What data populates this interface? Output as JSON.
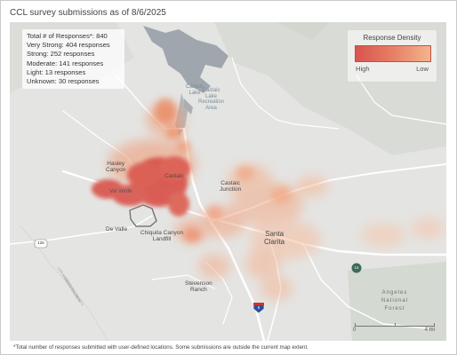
{
  "title": "CCL survey submissions as of 8/6/2025",
  "stats": {
    "total": "Total # of Responses*: 840",
    "rows": [
      "Very Strong: 404 responses",
      "Strong: 252 responses",
      "Moderate: 141 responses",
      "Light: 13 responses",
      "Unknown: 30 responses"
    ]
  },
  "legend": {
    "title": "Response Density",
    "high": "High",
    "low": "Low",
    "colors": {
      "high": "#d9544f",
      "mid": "#e57a62",
      "low": "#f4b48d"
    }
  },
  "places": {
    "castaic_lake": "Castaic\nLake",
    "castaic_lake_rec": "Castaic\nLake\nRecreation\nArea",
    "hasley_canyon": "Hasley\nCanyon",
    "castaic": "Castaic",
    "val_verde": "Val Verde",
    "castaic_junction": "Castaic\nJunction",
    "de_valle": "De Valle",
    "chiquita": "Chiquita Canyon\nLandfill",
    "santa_clarita": "Santa\nClarita",
    "stevenson_ranch": "Stevenson\nRanch",
    "forest": "Angeles\nNational\nForest",
    "county_line": "LOS ANGELES COUNTY",
    "county_line_2": "VENTURA COUNTY"
  },
  "shields": {
    "route_126": "126",
    "route_14": "14",
    "route_5": "5"
  },
  "scale": {
    "zero": "0",
    "four": "4 mi"
  },
  "footnote": "*Total number of responses submitted with user-defined locations. Some submissions are outside the current map extent."
}
